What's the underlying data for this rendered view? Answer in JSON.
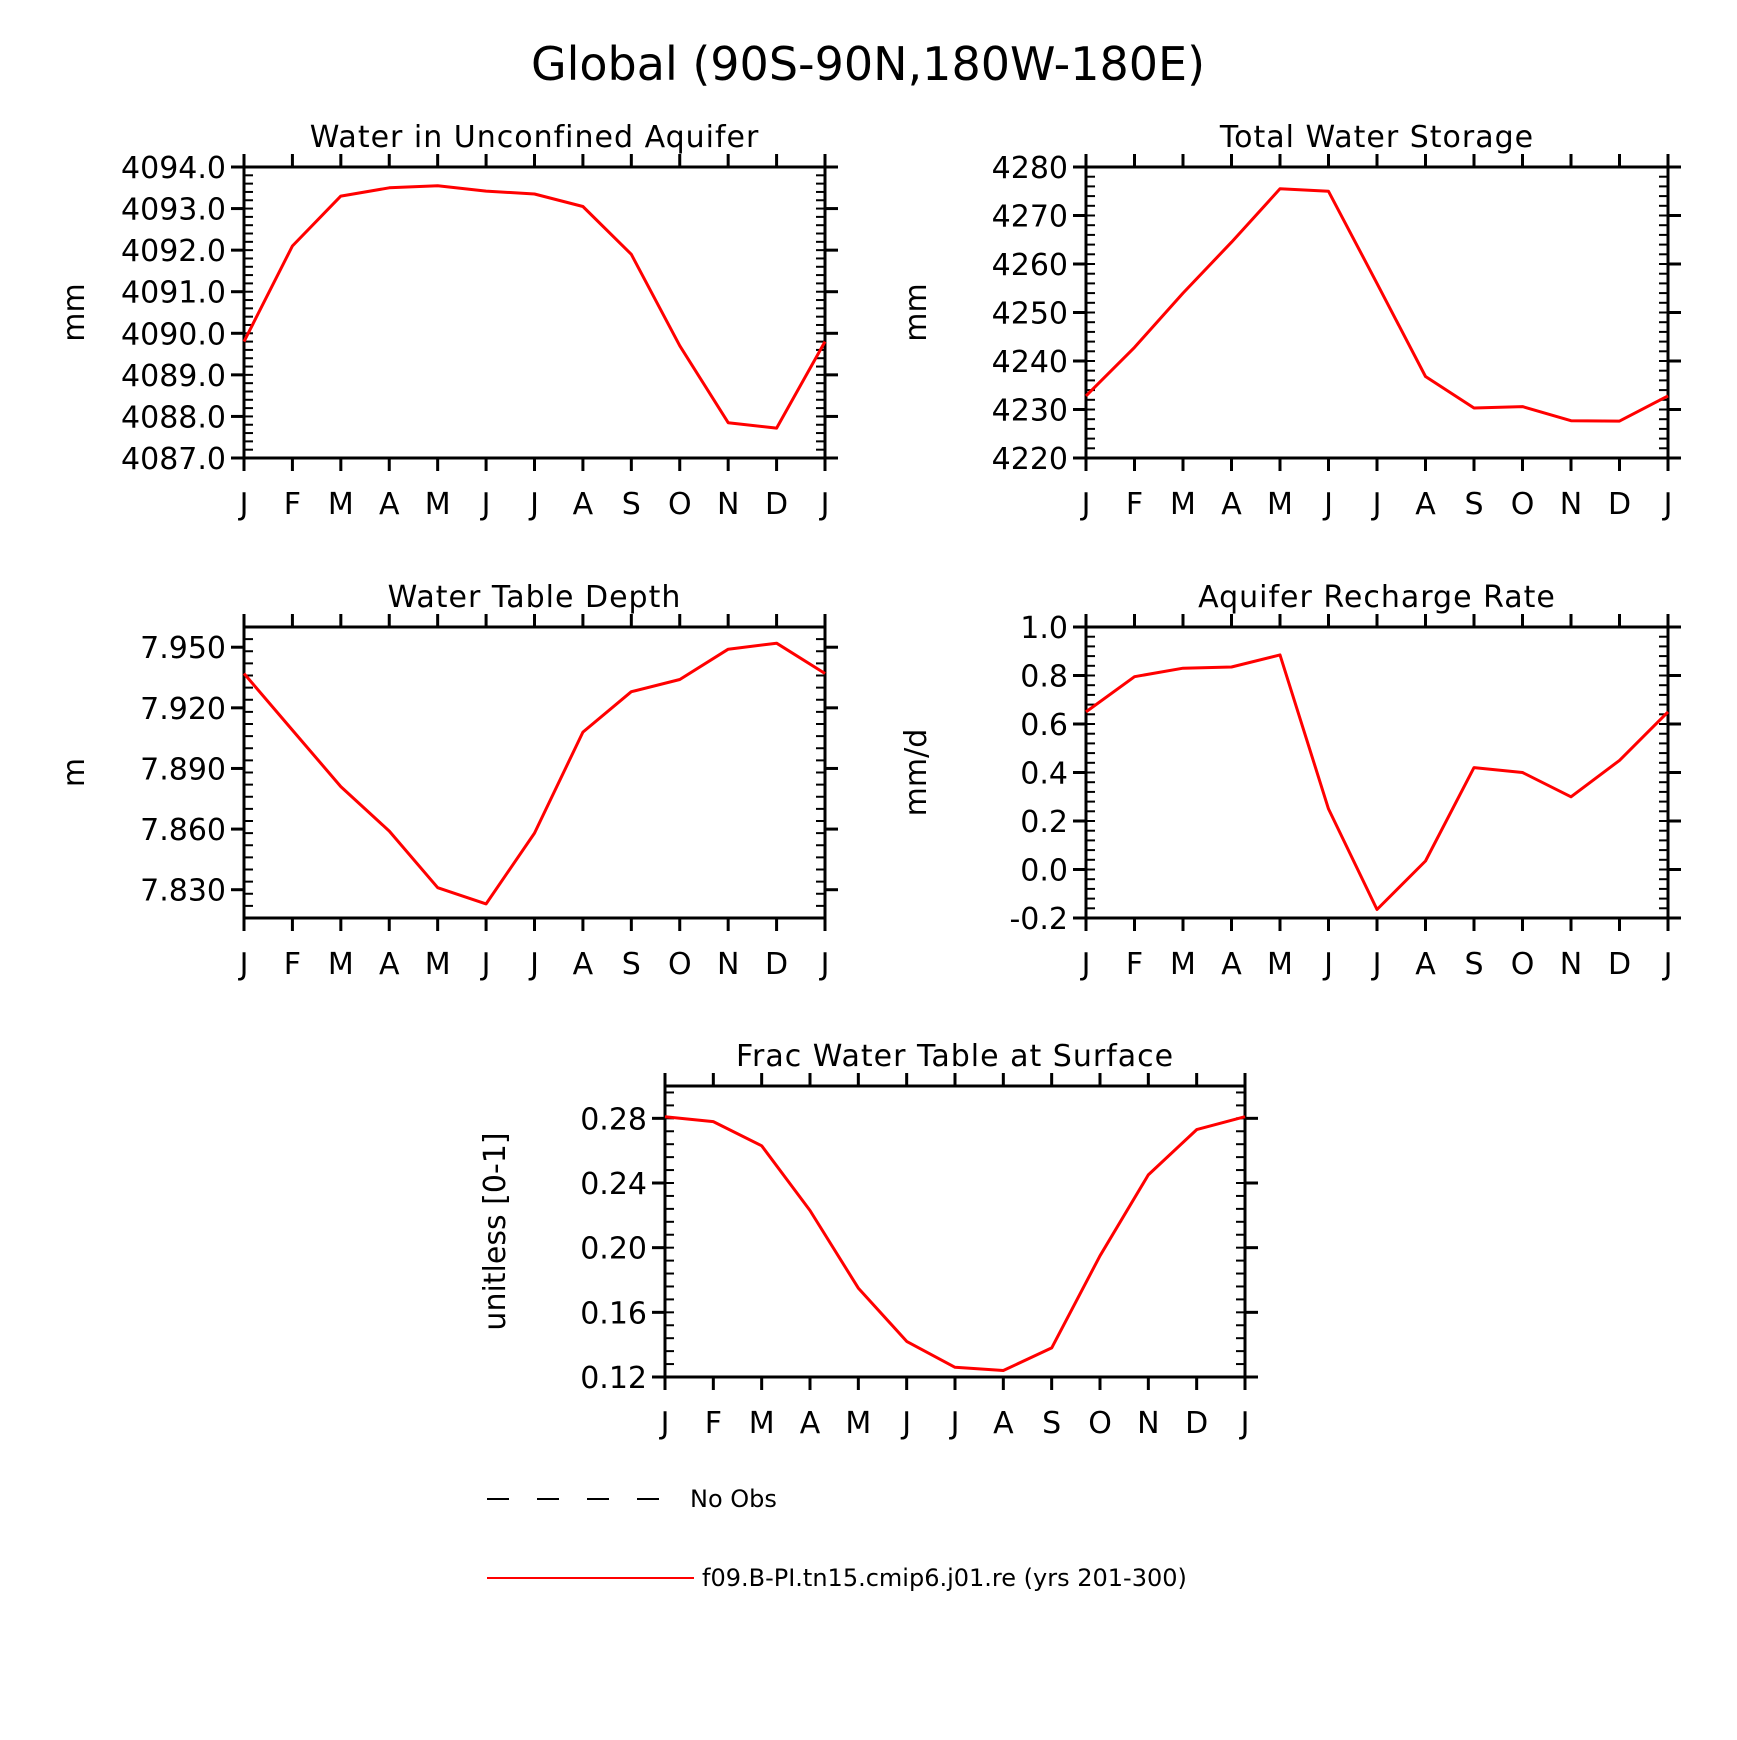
{
  "figure": {
    "title": "Global (90S-90N,180W-180E)"
  },
  "chart_data": [
    {
      "type": "line",
      "title": "Water in Unconfined Aquifer",
      "xlabel": "",
      "ylabel": "mm",
      "categories": [
        "J",
        "F",
        "M",
        "A",
        "M",
        "J",
        "J",
        "A",
        "S",
        "O",
        "N",
        "D",
        "J"
      ],
      "ylim": [
        4087.0,
        4094.0
      ],
      "yticks": [
        "4087.0",
        "4088.0",
        "4089.0",
        "4090.0",
        "4091.0",
        "4092.0",
        "4093.0",
        "4094.0"
      ],
      "grid": false,
      "series": [
        {
          "name": "f09.B-PI.tn15.cmip6.j01.re (yrs 201-300)",
          "color": "#ff0000",
          "values": [
            4089.8,
            4092.1,
            4093.3,
            4093.5,
            4093.55,
            4093.42,
            4093.35,
            4093.05,
            4091.9,
            4089.7,
            4087.85,
            4087.72,
            4089.8
          ]
        }
      ]
    },
    {
      "type": "line",
      "title": "Total Water Storage",
      "xlabel": "",
      "ylabel": "mm",
      "categories": [
        "J",
        "F",
        "M",
        "A",
        "M",
        "J",
        "J",
        "A",
        "S",
        "O",
        "N",
        "D",
        "J"
      ],
      "ylim": [
        4220,
        4280
      ],
      "yticks": [
        "4220",
        "4230",
        "4240",
        "4250",
        "4260",
        "4270",
        "4280"
      ],
      "grid": false,
      "series": [
        {
          "name": "f09.B-PI.tn15.cmip6.j01.re (yrs 201-300)",
          "color": "#ff0000",
          "values": [
            4232.8,
            4242.8,
            4254.0,
            4264.5,
            4275.5,
            4275.0,
            4256.0,
            4236.8,
            4230.3,
            4230.6,
            4227.7,
            4227.6,
            4232.8
          ]
        }
      ]
    },
    {
      "type": "line",
      "title": "Water Table Depth",
      "xlabel": "",
      "ylabel": "m",
      "categories": [
        "J",
        "F",
        "M",
        "A",
        "M",
        "J",
        "J",
        "A",
        "S",
        "O",
        "N",
        "D",
        "J"
      ],
      "ylim": [
        7.816,
        7.96
      ],
      "yticks": [
        "7.830",
        "7.860",
        "7.890",
        "7.920",
        "7.950"
      ],
      "grid": false,
      "series": [
        {
          "name": "f09.B-PI.tn15.cmip6.j01.re (yrs 201-300)",
          "color": "#ff0000",
          "values": [
            7.937,
            7.909,
            7.881,
            7.859,
            7.831,
            7.823,
            7.858,
            7.908,
            7.928,
            7.934,
            7.949,
            7.952,
            7.937
          ]
        }
      ]
    },
    {
      "type": "line",
      "title": "Aquifer Recharge Rate",
      "xlabel": "",
      "ylabel": "mm/d",
      "categories": [
        "J",
        "F",
        "M",
        "A",
        "M",
        "J",
        "J",
        "A",
        "S",
        "O",
        "N",
        "D",
        "J"
      ],
      "ylim": [
        -0.2,
        1.0
      ],
      "yticks": [
        "-0.2",
        "0.0",
        "0.2",
        "0.4",
        "0.6",
        "0.8",
        "1.0"
      ],
      "grid": false,
      "series": [
        {
          "name": "f09.B-PI.tn15.cmip6.j01.re (yrs 201-300)",
          "color": "#ff0000",
          "values": [
            0.65,
            0.795,
            0.83,
            0.835,
            0.885,
            0.25,
            -0.165,
            0.035,
            0.42,
            0.4,
            0.3,
            0.45,
            0.65
          ]
        }
      ]
    },
    {
      "type": "line",
      "title": "Frac Water Table at Surface",
      "xlabel": "",
      "ylabel": "unitless [0-1]",
      "categories": [
        "J",
        "F",
        "M",
        "A",
        "M",
        "J",
        "J",
        "A",
        "S",
        "O",
        "N",
        "D",
        "J"
      ],
      "ylim": [
        0.12,
        0.3
      ],
      "yticks": [
        "0.12",
        "0.16",
        "0.20",
        "0.24",
        "0.28"
      ],
      "grid": false,
      "series": [
        {
          "name": "f09.B-PI.tn15.cmip6.j01.re (yrs 201-300)",
          "color": "#ff0000",
          "values": [
            0.281,
            0.278,
            0.263,
            0.223,
            0.175,
            0.142,
            0.126,
            0.124,
            0.138,
            0.195,
            0.245,
            0.273,
            0.281
          ]
        }
      ]
    }
  ],
  "legend": {
    "placement": "bottom-center",
    "entries": [
      {
        "label": "No Obs",
        "style": "dashed",
        "color": "#000000"
      },
      {
        "label": "f09.B-PI.tn15.cmip6.j01.re (yrs 201-300)",
        "style": "solid",
        "color": "#ff0000"
      }
    ]
  }
}
